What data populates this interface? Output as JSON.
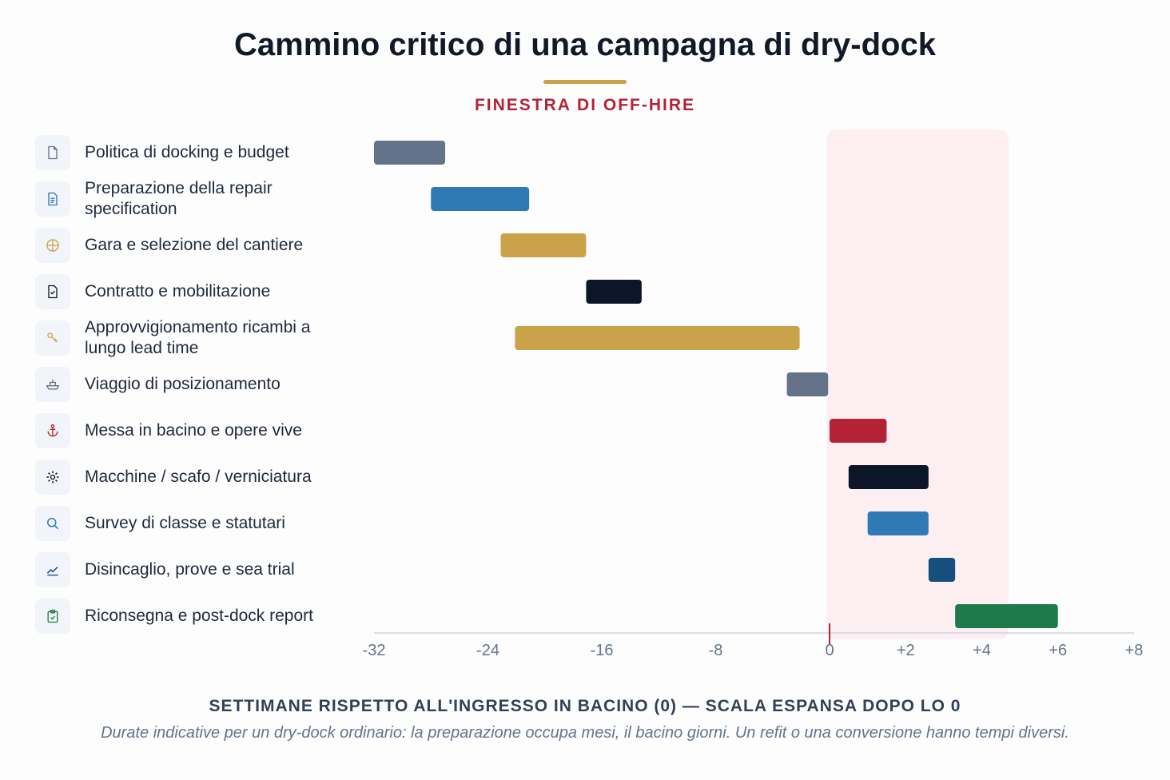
{
  "chart_data": {
    "type": "bar",
    "orientation": "horizontal",
    "title": "Cammino critico di una campagna di dry-dock",
    "subtitle": "FINESTRA DI OFF-HIRE",
    "xlabel": "SETTIMANE RISPETTO ALL'INGRESSO IN BACINO (0) — SCALA ESPANSA DOPO LO 0",
    "note": "Durate indicative per un dry-dock ordinario: la preparazione occupa mesi, il bacino giorni. Un refit o una conversione hanno tempi diversi.",
    "x_ticks": [
      {
        "value": -32,
        "label": "-32"
      },
      {
        "value": -24,
        "label": "-24"
      },
      {
        "value": -16,
        "label": "-16"
      },
      {
        "value": -8,
        "label": "-8"
      },
      {
        "value": 0,
        "label": "0"
      },
      {
        "value": 2,
        "label": "+2"
      },
      {
        "value": 4,
        "label": "+4"
      },
      {
        "value": 6,
        "label": "+6"
      },
      {
        "value": 8,
        "label": "+8"
      }
    ],
    "xlim": [
      -32,
      8
    ],
    "scale_break_at": 0,
    "off_hire_window": [
      -0.2,
      4.7
    ],
    "tasks": [
      {
        "label": "Politica di docking e budget",
        "icon": "file-icon",
        "start": -32,
        "end": -27,
        "color": "#64728a"
      },
      {
        "label": "Preparazione della repair specification",
        "icon": "document-text-icon",
        "start": -28,
        "end": -21.1,
        "color": "#2f7ab5"
      },
      {
        "label": "Gara e selezione del cantiere",
        "icon": "globe-icon",
        "start": -23.1,
        "end": -17.1,
        "color": "#c9a24a"
      },
      {
        "label": "Contratto e mobilitazione",
        "icon": "file-check-icon",
        "start": -17.1,
        "end": -13.2,
        "color": "#0b1628"
      },
      {
        "label": "Approvvigionamento ricambi a lungo lead time",
        "icon": "key-icon",
        "start": -22.1,
        "end": -2.1,
        "color": "#c9a24a"
      },
      {
        "label": "Viaggio di posizionamento",
        "icon": "ship-icon",
        "start": -3,
        "end": -0.1,
        "color": "#64728a"
      },
      {
        "label": "Messa in bacino e opere vive",
        "icon": "anchor-icon",
        "start": 0,
        "end": 1.5,
        "color": "#b42335"
      },
      {
        "label": "Macchine / scafo / verniciatura",
        "icon": "gear-icon",
        "start": 0.5,
        "end": 2.6,
        "color": "#0b1628"
      },
      {
        "label": "Survey di classe e statutari",
        "icon": "search-icon",
        "start": 1,
        "end": 2.6,
        "color": "#2f7ab5"
      },
      {
        "label": "Disincaglio, prove e sea trial",
        "icon": "trend-icon",
        "start": 2.6,
        "end": 3.3,
        "color": "#174f7c"
      },
      {
        "label": "Riconsegna e post-dock report",
        "icon": "clipboard-check-icon",
        "start": 3.3,
        "end": 6,
        "color": "#1e7a4a"
      }
    ]
  }
}
